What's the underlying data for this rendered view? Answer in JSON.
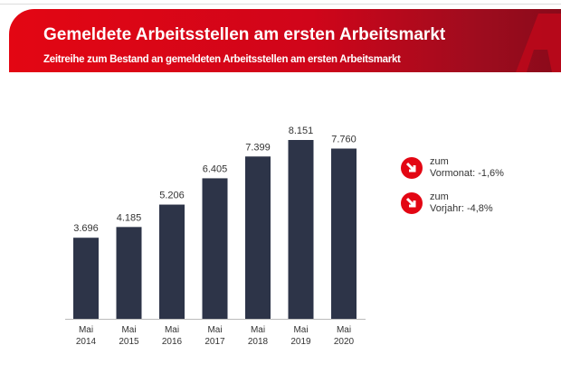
{
  "header": {
    "title": "Gemeldete Arbeitsstellen am ersten Arbeitsmarkt",
    "subtitle": "Zeitreihe zum Bestand an gemeldeten Arbeitsstellen am ersten Arbeitsmarkt"
  },
  "colors": {
    "brand": "#e30613",
    "bar": "#2d3448"
  },
  "chart_data": {
    "type": "bar",
    "categories": [
      [
        "Mai",
        "2014"
      ],
      [
        "Mai",
        "2015"
      ],
      [
        "Mai",
        "2016"
      ],
      [
        "Mai",
        "2017"
      ],
      [
        "Mai",
        "2018"
      ],
      [
        "Mai",
        "2019"
      ],
      [
        "Mai",
        "2020"
      ]
    ],
    "values": [
      3696,
      4185,
      5206,
      6405,
      7399,
      8151,
      7760
    ],
    "labels": [
      "3.696",
      "4.185",
      "5.206",
      "6.405",
      "7.399",
      "8.151",
      "7.760"
    ],
    "ylim": [
      0,
      8151
    ],
    "grid": false
  },
  "indicators": [
    {
      "icon": "arrow-down-right-icon",
      "line1": "zum",
      "line2": "Vormonat: -1,6%"
    },
    {
      "icon": "arrow-down-right-icon",
      "line1": "zum",
      "line2": "Vorjahr: -4,8%"
    }
  ]
}
